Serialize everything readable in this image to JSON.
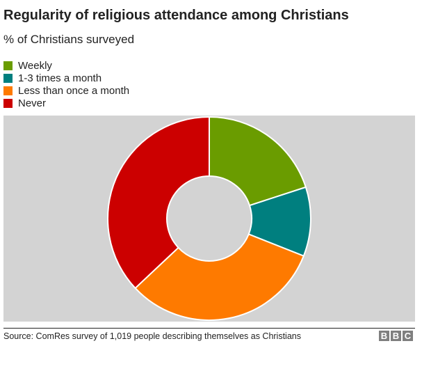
{
  "chart_data": {
    "type": "pie",
    "variant": "donut",
    "title": "Regularity of religious attendance among Christians",
    "subtitle": "% of Christians surveyed",
    "legend_placement": "top-left",
    "categories": [
      "Weekly",
      "1-3 times a month",
      "Less than once a month",
      "Never"
    ],
    "values": [
      20,
      11,
      32,
      37
    ],
    "colors": [
      "#6a9c00",
      "#007f7f",
      "#fe7a00",
      "#cc0000"
    ],
    "unit": "%",
    "source": "Source: ComRes survey of 1,019 people describing themselves as Christians"
  },
  "branding": {
    "logo_letters": [
      "B",
      "B",
      "C"
    ],
    "logo_color": "#7f7f7f"
  },
  "panel_color": "#d3d3d3"
}
